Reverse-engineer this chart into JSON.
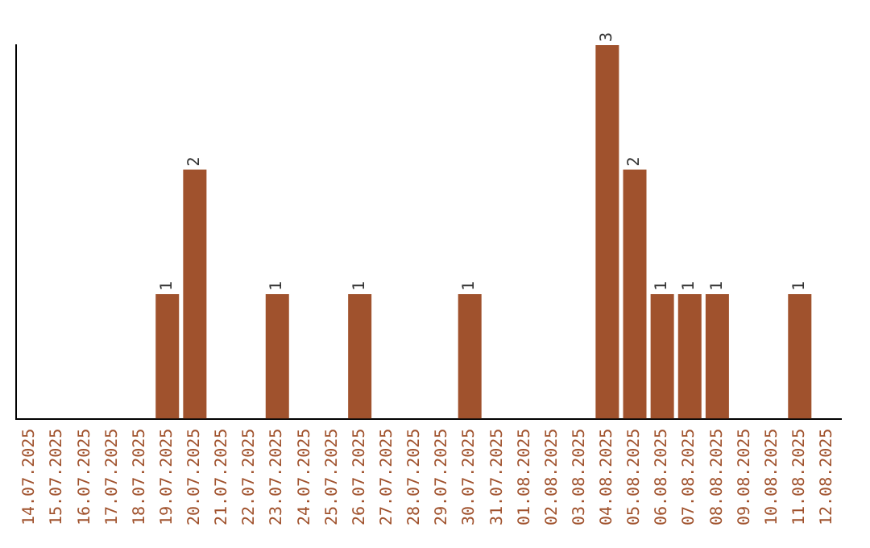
{
  "chart_data": {
    "type": "bar",
    "categories": [
      "14.07.2025",
      "15.07.2025",
      "16.07.2025",
      "17.07.2025",
      "18.07.2025",
      "19.07.2025",
      "20.07.2025",
      "21.07.2025",
      "22.07.2025",
      "23.07.2025",
      "24.07.2025",
      "25.07.2025",
      "26.07.2025",
      "27.07.2025",
      "28.07.2025",
      "29.07.2025",
      "30.07.2025",
      "31.07.2025",
      "01.08.2025",
      "02.08.2025",
      "03.08.2025",
      "04.08.2025",
      "05.08.2025",
      "06.08.2025",
      "07.08.2025",
      "08.08.2025",
      "09.08.2025",
      "10.08.2025",
      "11.08.2025",
      "12.08.2025"
    ],
    "values": [
      0,
      0,
      0,
      0,
      0,
      1,
      2,
      0,
      0,
      1,
      0,
      0,
      1,
      0,
      0,
      0,
      1,
      0,
      0,
      0,
      0,
      3,
      2,
      1,
      1,
      1,
      0,
      0,
      1,
      0
    ],
    "value_labels": [
      null,
      null,
      null,
      null,
      null,
      "1",
      "2",
      null,
      null,
      "1",
      null,
      null,
      "1",
      null,
      null,
      null,
      "1",
      null,
      null,
      null,
      null,
      "3",
      "2",
      "1",
      "1",
      "1",
      null,
      null,
      "1",
      null
    ],
    "color": "#a0522d",
    "grid": false,
    "legend": false,
    "tick_labels": "x"
  }
}
